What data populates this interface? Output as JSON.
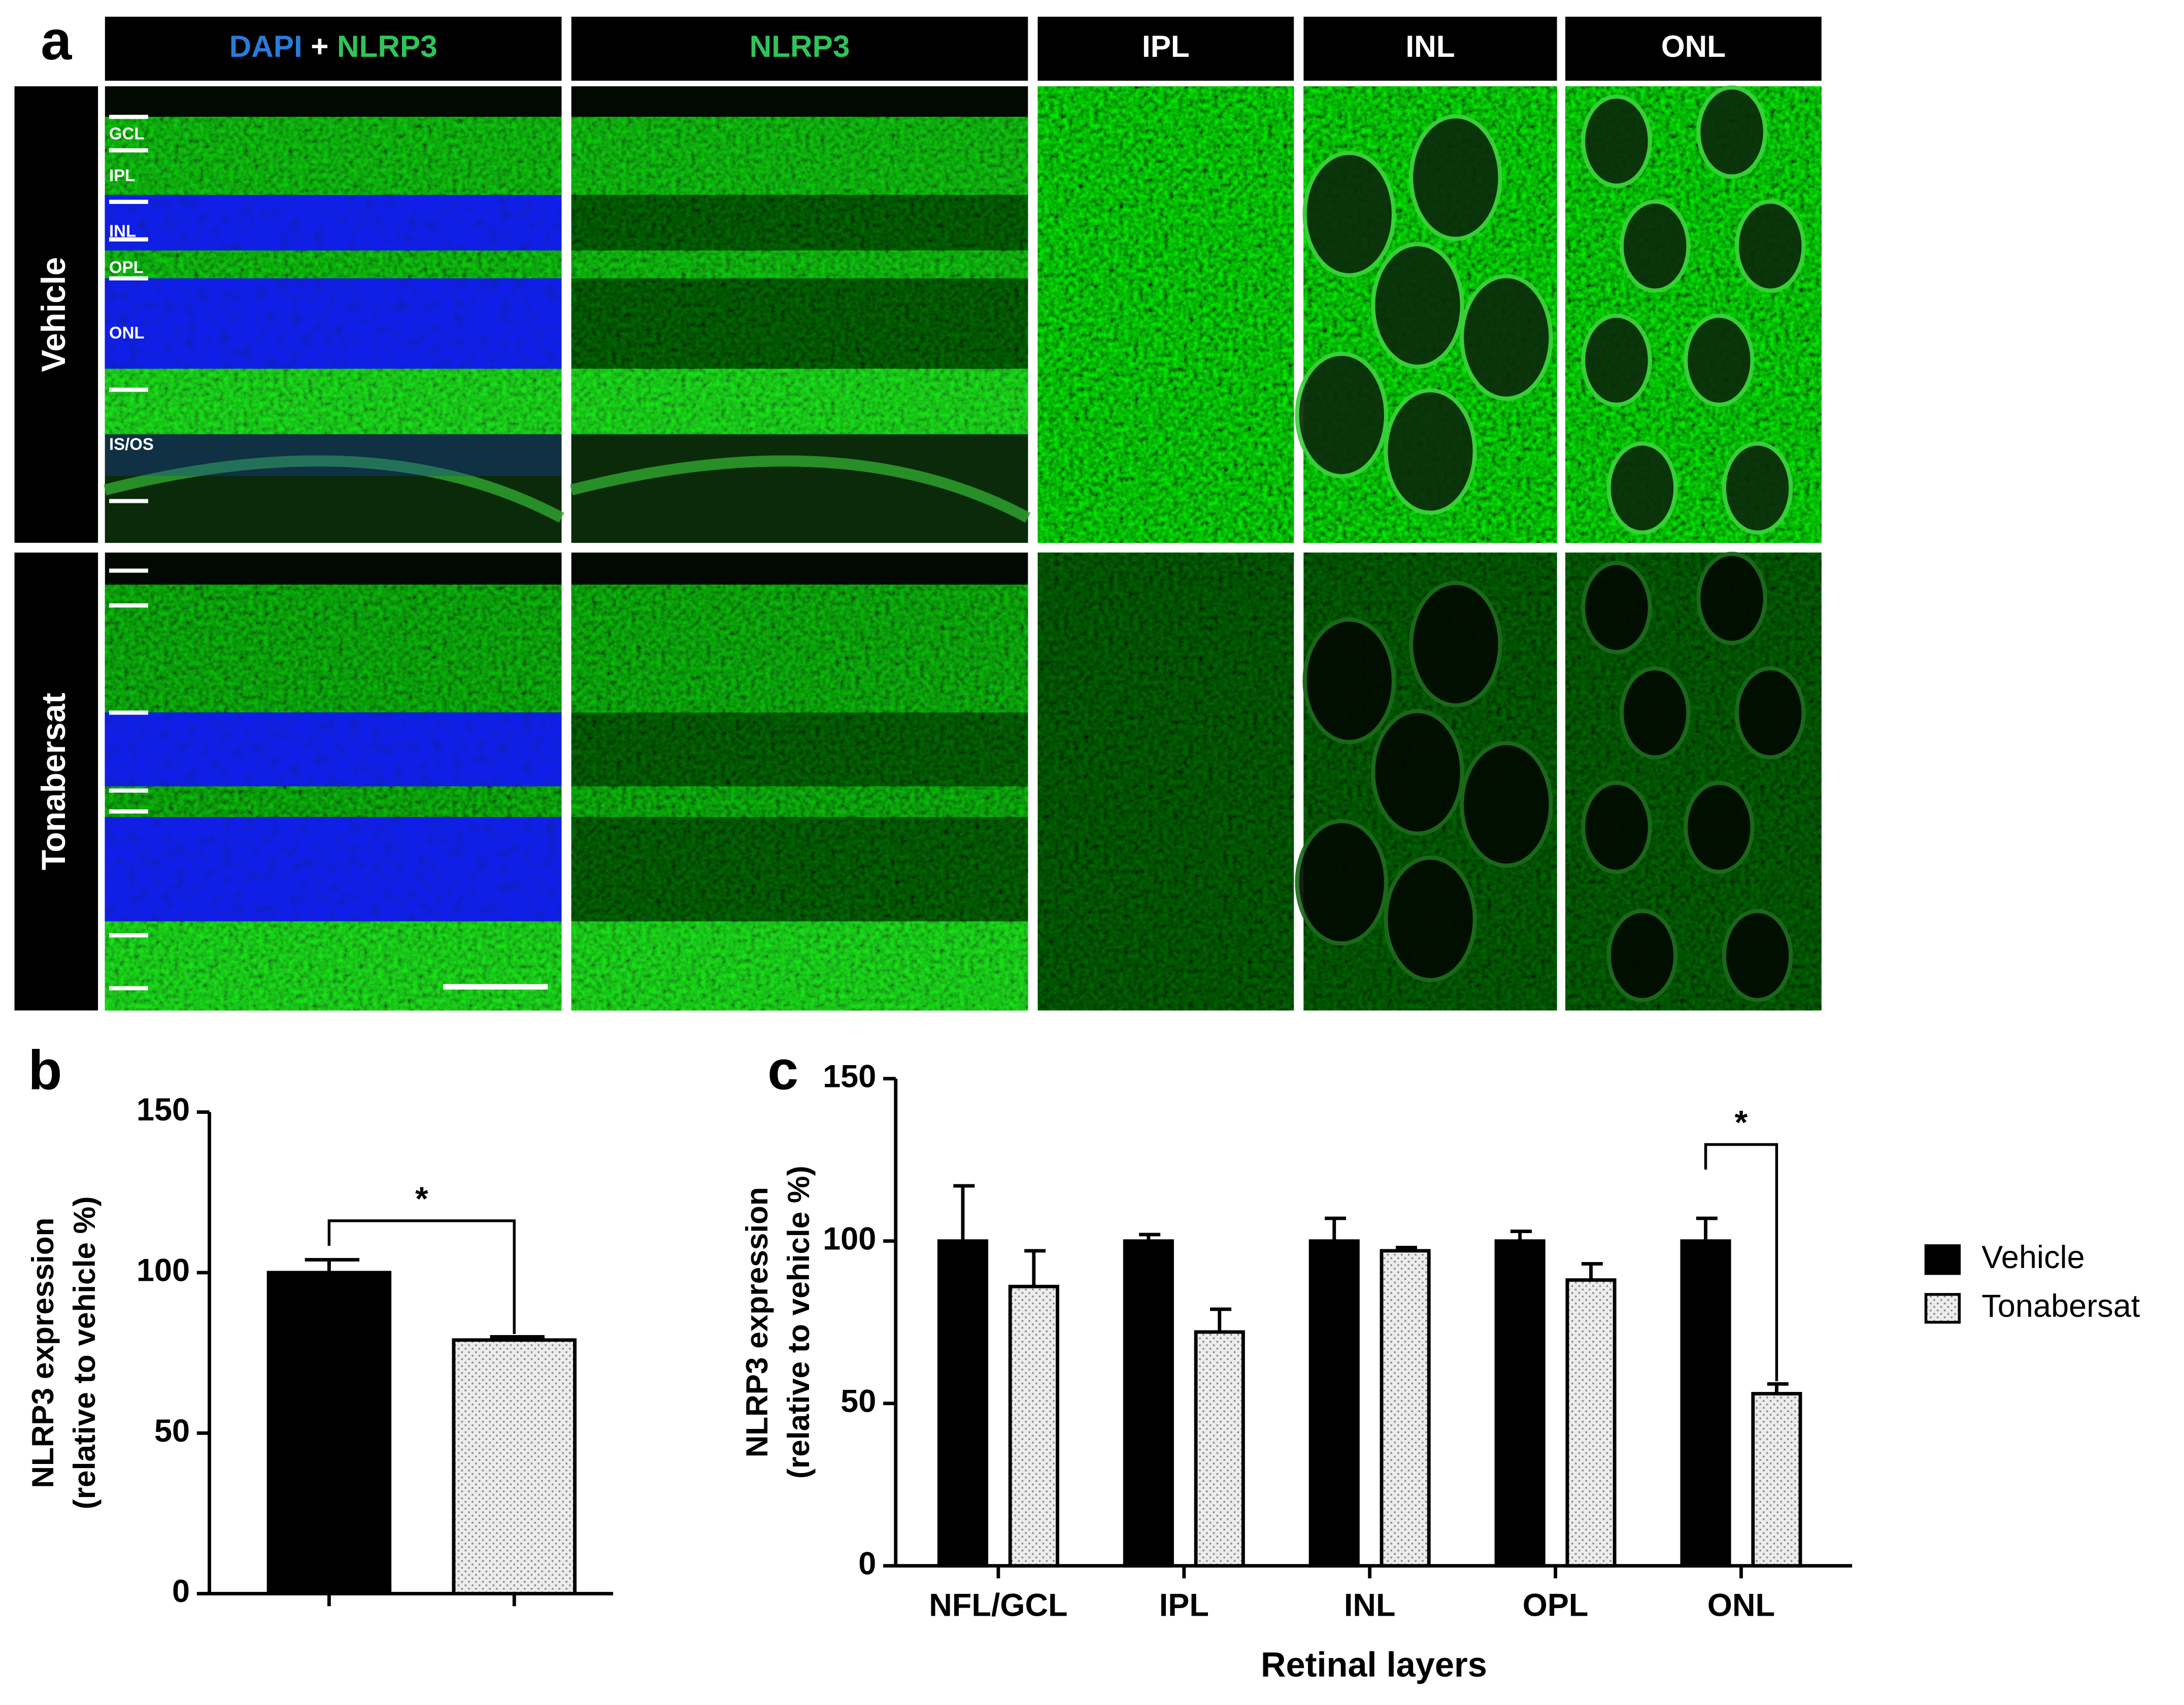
{
  "panel_a": {
    "panel_label": "a",
    "column_headers": [
      {
        "parts": [
          "DAPI",
          "+",
          "NLRP3"
        ],
        "colors": [
          "#2a7bd6",
          "#ffffff",
          "#2fc45a"
        ]
      },
      {
        "parts": [
          "NLRP3"
        ],
        "colors": [
          "#2fc45a"
        ]
      },
      {
        "parts": [
          "IPL"
        ],
        "colors": [
          "#ffffff"
        ]
      },
      {
        "parts": [
          "INL"
        ],
        "colors": [
          "#ffffff"
        ]
      },
      {
        "parts": [
          "ONL"
        ],
        "colors": [
          "#ffffff"
        ]
      }
    ],
    "row_labels": [
      "Vehicle",
      "Tonabersat"
    ],
    "layer_labels": [
      "GCL",
      "IPL",
      "INL",
      "OPL",
      "ONL",
      "IS/OS"
    ]
  },
  "chart_data": [
    {
      "type": "bar",
      "panel_label": "b",
      "y_label": [
        "NLRP3 expression",
        "(relative to vehicle %)"
      ],
      "categories": [
        null,
        null
      ],
      "values": [
        100,
        79
      ],
      "errors": [
        4,
        1
      ],
      "colors": [
        "#000000",
        "#e8e8e8"
      ],
      "patterns": [
        "solid",
        "dots"
      ],
      "ylim": [
        0,
        150
      ],
      "yticks": [
        0,
        50,
        100,
        150
      ],
      "annotations": [
        "*"
      ]
    },
    {
      "type": "grouped_bar",
      "panel_label": "c",
      "y_label": [
        "NLRP3 expression",
        "(relative to vehicle %)"
      ],
      "x_label": "Retinal layers",
      "categories": [
        "NFL/GCL",
        "IPL",
        "INL",
        "OPL",
        "ONL"
      ],
      "series": [
        {
          "name": "Vehicle",
          "color": "#000000",
          "pattern": "solid",
          "values": [
            100,
            100,
            100,
            100,
            100
          ],
          "errors": [
            17,
            2,
            7,
            3,
            7
          ]
        },
        {
          "name": "Tonabersat",
          "color": "#e8e8e8",
          "pattern": "dots",
          "values": [
            86,
            72,
            97,
            88,
            53
          ],
          "errors": [
            11,
            7,
            1,
            5,
            3
          ]
        }
      ],
      "ylim": [
        0,
        150
      ],
      "yticks": [
        0,
        50,
        100,
        150
      ],
      "legend": "right",
      "annotations": [
        "*"
      ]
    }
  ]
}
